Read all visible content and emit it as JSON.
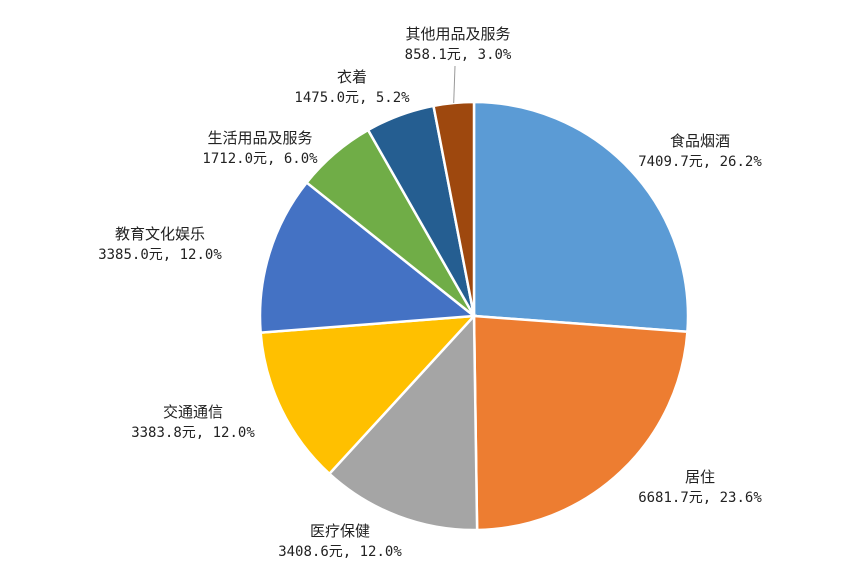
{
  "chart_data": {
    "type": "pie",
    "title": "",
    "start": "12 o'clock, clockwise",
    "categories": [
      "食品烟酒",
      "居住",
      "医疗保健",
      "交通通信",
      "教育文化娱乐",
      "生活用品及服务",
      "衣着",
      "其他用品及服务"
    ],
    "values": [
      7409.7,
      6681.7,
      3408.6,
      3383.8,
      3385.0,
      1712.0,
      1475.0,
      858.1
    ],
    "percents": [
      26.2,
      23.6,
      12.0,
      12.0,
      12.0,
      6.0,
      5.2,
      3.0
    ],
    "data_labels": [
      "7409.7元, 26.2%",
      "6681.7元, 23.6%",
      "3408.6元, 12.0%",
      "3383.8元, 12.0%",
      "3385.0元, 12.0%",
      "1712.0元, 6.0%",
      "1475.0元, 5.2%",
      "858.1元, 3.0%"
    ],
    "colors": [
      "#5B9BD5",
      "#ED7D31",
      "#A5A5A5",
      "#FFC000",
      "#4472C4",
      "#70AD47",
      "#255E91",
      "#9E480E"
    ],
    "legend": "none"
  }
}
